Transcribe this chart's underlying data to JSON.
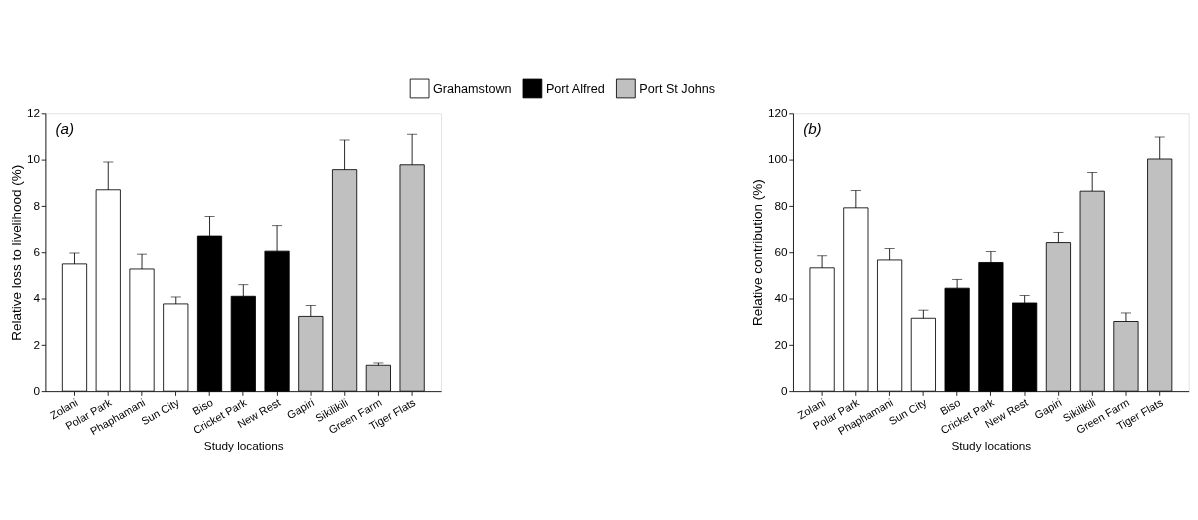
{
  "chart_data": [
    {
      "type": "bar",
      "annotations": [
        "(a)"
      ],
      "xlabel": "Study locations",
      "ylabel": "Relative loss to livelihood (%)",
      "categories": [
        "Zolani",
        "Polar Park",
        "Phaphamani",
        "Sun City",
        "Biso",
        "Cricket Park",
        "New Rest",
        "Gapiri",
        "Sikilikili",
        "Green Farm",
        "Tiger Flats"
      ],
      "series": [
        {
          "name": "Grahamstown",
          "color": "#ffffff",
          "values": [
            5.5,
            8.7,
            5.28,
            3.77,
            null,
            null,
            null,
            null,
            null,
            null,
            null
          ],
          "errors": [
            [
              5.5,
              5.97
            ],
            [
              8.7,
              9.9
            ],
            [
              5.28,
              5.92
            ],
            [
              3.77,
              4.07
            ],
            null,
            null,
            null,
            null,
            null,
            null,
            null
          ]
        },
        {
          "name": "Port Alfred",
          "color": "#000000",
          "values": [
            null,
            null,
            null,
            null,
            6.7,
            4.1,
            6.05,
            null,
            null,
            null,
            null
          ],
          "errors": [
            null,
            null,
            null,
            null,
            [
              6.7,
              7.55
            ],
            [
              4.1,
              4.6
            ],
            [
              6.05,
              7.15
            ],
            null,
            null,
            null,
            null
          ]
        },
        {
          "name": "Port St Johns",
          "color": "#c0c0c0",
          "values": [
            null,
            null,
            null,
            null,
            null,
            null,
            null,
            3.23,
            9.57,
            1.12,
            9.78
          ],
          "errors": [
            null,
            null,
            null,
            null,
            null,
            null,
            null,
            [
              3.23,
              3.7
            ],
            [
              9.57,
              10.85
            ],
            [
              1.12,
              1.22
            ],
            [
              9.78,
              11.1
            ]
          ]
        }
      ],
      "ylim": [
        0,
        12
      ],
      "yticks": [
        0,
        2,
        4,
        6,
        8,
        10,
        12
      ],
      "grid": false,
      "legend": "top"
    },
    {
      "type": "bar",
      "annotations": [
        "(b)"
      ],
      "xlabel": "Study locations",
      "ylabel": "Relative contribution (%)",
      "categories": [
        "Zolani",
        "Polar Park",
        "Phaphamani",
        "Sun City",
        "Biso",
        "Cricket Park",
        "New Rest",
        "Gapiri",
        "Sikilikili",
        "Green Farm",
        "Tiger Flats"
      ],
      "series": [
        {
          "color": "#ffffff",
          "values": [
            53.3,
            79.2,
            56.7,
            31.5,
            null,
            null,
            null,
            null,
            null,
            null,
            null
          ],
          "errors": [
            [
              53.3,
              58.5
            ],
            [
              79.2,
              86.7
            ],
            [
              56.7,
              61.6
            ],
            [
              31.5,
              35
            ],
            null,
            null,
            null,
            null,
            null,
            null,
            null
          ]
        },
        {
          "color": "#000000",
          "values": [
            null,
            null,
            null,
            null,
            44.5,
            55.6,
            38.1,
            null,
            null,
            null,
            null
          ],
          "errors": [
            null,
            null,
            null,
            null,
            [
              44.5,
              48.3
            ],
            [
              55.6,
              60.3
            ],
            [
              38.1,
              41.3
            ],
            null,
            null,
            null,
            null
          ]
        },
        {
          "color": "#c0c0c0",
          "values": [
            null,
            null,
            null,
            null,
            null,
            null,
            null,
            64.2,
            86.4,
            30.1,
            100.3
          ],
          "errors": [
            null,
            null,
            null,
            null,
            null,
            null,
            null,
            [
              64.2,
              68.6
            ],
            [
              86.4,
              94.5
            ],
            [
              30.1,
              33.8
            ],
            [
              100.3,
              109.8
            ]
          ]
        }
      ],
      "ylim": [
        0,
        120
      ],
      "yticks": [
        0,
        20,
        40,
        60,
        80,
        100,
        120
      ],
      "grid": false,
      "legend": false
    }
  ]
}
